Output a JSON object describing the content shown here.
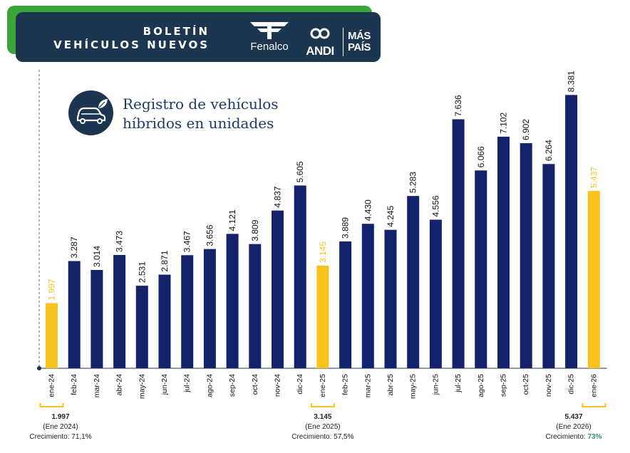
{
  "header": {
    "title_line1": "BOLETÍN",
    "title_line2": "VEHÍCULOS NUEVOS",
    "logos": [
      "Fenalco",
      "ANDI",
      "MÁS PAÍS"
    ]
  },
  "subtitle": {
    "icon": "hybrid-car-leaf-icon",
    "line1": "Registro de vehículos",
    "line2": "híbridos  en unidades"
  },
  "chart_data": {
    "type": "bar",
    "title": "Registro de vehículos híbridos en unidades",
    "categories": [
      "ene-24",
      "feb-24",
      "mar-24",
      "abr-24",
      "may-24",
      "jun-24",
      "jul-24",
      "ago-24",
      "sep-24",
      "oct-24",
      "nov-24",
      "dic-24",
      "ene-25",
      "feb-25",
      "mar-25",
      "abr-25",
      "may-25",
      "jun-25",
      "jul-25",
      "ago-25",
      "sep-25",
      "oct-25",
      "nov-25",
      "dic-25",
      "ene-26"
    ],
    "values": [
      1997,
      3287,
      3014,
      3473,
      2531,
      2871,
      3467,
      3656,
      4121,
      3809,
      4837,
      5605,
      3145,
      3889,
      4430,
      4245,
      5283,
      4556,
      7636,
      6066,
      7102,
      6902,
      6264,
      8381,
      5437
    ],
    "labels": [
      "1.997",
      "3.287",
      "3.014",
      "3.473",
      "2.531",
      "2.871",
      "3.467",
      "3.656",
      "4.121",
      "3.809",
      "4.837",
      "5.605",
      "3.145",
      "3.889",
      "4.430",
      "4.245",
      "5.283",
      "4.556",
      "7.636",
      "6.066",
      "7.102",
      "6.902",
      "6.264",
      "8.381",
      "5.437"
    ],
    "highlighted": [
      "ene-24",
      "ene-25",
      "ene-26"
    ],
    "ylim": [
      0,
      9000
    ],
    "grid": false,
    "colors": {
      "bar": "#13226b",
      "highlight": "#f8c31c",
      "axis": "#1c3550"
    }
  },
  "notes": [
    {
      "category": "ene-24",
      "value": "1.997",
      "period": "(Ene 2024)",
      "growth_label": "Crecimiento: ",
      "growth": "71,1%",
      "growth_highlight": false
    },
    {
      "category": "ene-25",
      "value": "3.145",
      "period": "(Ene 2025)",
      "growth_label": "Crecimiento: ",
      "growth": "57,5%",
      "growth_highlight": false
    },
    {
      "category": "ene-26",
      "value": "5.437",
      "period": "(Ene 2026)",
      "growth_label": "Crecimiento: ",
      "growth": "73%",
      "growth_highlight": true
    }
  ]
}
